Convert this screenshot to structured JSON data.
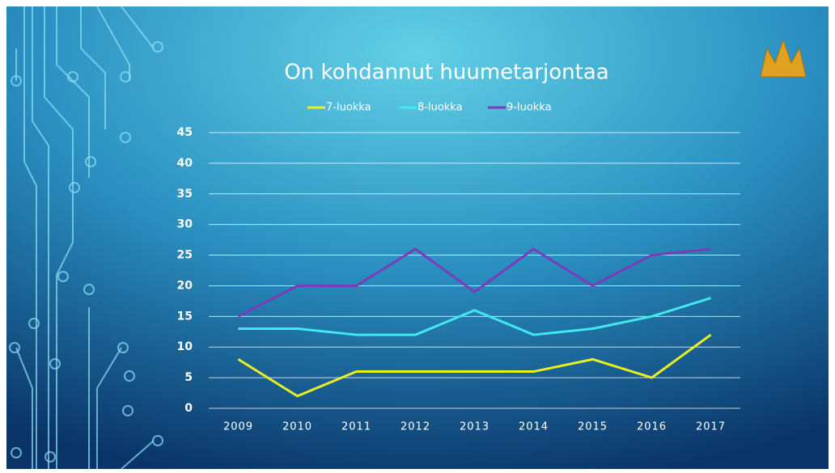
{
  "chart_data": {
    "type": "line",
    "title": "On kohdannut huumetarjontaa",
    "categories": [
      "2009",
      "2010",
      "2011",
      "2012",
      "2013",
      "2014",
      "2015",
      "2016",
      "2017"
    ],
    "series": [
      {
        "name": "7-luokka",
        "color": "#e8f020",
        "values": [
          8,
          2,
          6,
          6,
          6,
          6,
          8,
          5,
          12
        ]
      },
      {
        "name": "8-luokka",
        "color": "#40e8f0",
        "values": [
          13,
          13,
          12,
          12,
          16,
          12,
          13,
          15,
          18
        ]
      },
      {
        "name": "9-luokka",
        "color": "#7a3cb8",
        "values": [
          15,
          20,
          20,
          26,
          19,
          26,
          20,
          25,
          26
        ]
      }
    ],
    "ylim": [
      0,
      45
    ],
    "yticks": [
      0,
      5,
      10,
      15,
      20,
      25,
      30,
      35,
      40,
      45
    ],
    "grid": true,
    "legend": "top"
  }
}
